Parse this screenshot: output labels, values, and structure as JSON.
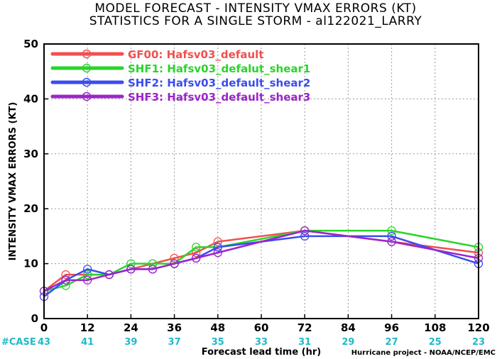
{
  "chart_data": {
    "type": "line",
    "title": "MODEL FORECAST - INTENSITY VMAX ERRORS (KT)",
    "subtitle": "STATISTICS FOR A SINGLE STORM - al122021_LARRY",
    "xlabel": "Forecast lead time (hr)",
    "ylabel": "INTENSITY VMAX ERRORS (KT)",
    "xlim": [
      0,
      120
    ],
    "ylim": [
      0,
      50
    ],
    "xticks": [
      "0",
      "12",
      "24",
      "36",
      "48",
      "60",
      "72",
      "84",
      "96",
      "108",
      "120"
    ],
    "yticks": [
      "0",
      "10",
      "20",
      "30",
      "40",
      "50"
    ],
    "grid": true,
    "legend_position": "top-left",
    "x": [
      0,
      6,
      12,
      18,
      24,
      30,
      36,
      42,
      48,
      72,
      96,
      120
    ],
    "series": [
      {
        "name": "GF00: Hafsv03_default",
        "color": "#f05050",
        "values": [
          5,
          8,
          8,
          8,
          9,
          10,
          11,
          12,
          14,
          16,
          14,
          12
        ]
      },
      {
        "name": "SHF1: Hafsv03_defalut_shear1",
        "color": "#2ad42a",
        "values": [
          5,
          6,
          8,
          8,
          10,
          10,
          10,
          13,
          13,
          16,
          16,
          13
        ]
      },
      {
        "name": "SHF2: Hafsv03_default_shear2",
        "color": "#3b4cf0",
        "values": [
          4,
          7,
          9,
          8,
          9,
          9,
          10,
          11,
          13,
          15,
          15,
          10
        ]
      },
      {
        "name": "SHF3: Hafsv03_default_shear3",
        "color": "#9b25c9",
        "values": [
          5,
          7,
          7,
          8,
          9,
          9,
          10,
          11,
          12,
          16,
          14,
          11
        ]
      }
    ],
    "case_label": "#CASE",
    "case_x": [
      0,
      12,
      24,
      36,
      48,
      60,
      72,
      84,
      96,
      108,
      120
    ],
    "case_counts": [
      "43",
      "41",
      "39",
      "37",
      "35",
      "33",
      "31",
      "29",
      "27",
      "25",
      "23"
    ],
    "credit": "Hurricane project - NOAA/NCEP/EMC"
  }
}
